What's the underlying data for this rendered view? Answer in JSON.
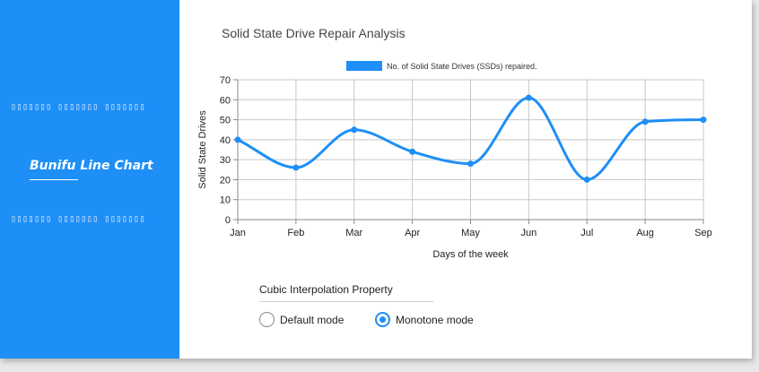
{
  "sidebar": {
    "title": "Bunifu Line Chart",
    "dots_top": "▯▯▯▯▯▯▯ ▯▯▯▯▯▯▯ ▯▯▯▯▯▯▯",
    "dots_bottom": "▯▯▯▯▯▯▯ ▯▯▯▯▯▯▯ ▯▯▯▯▯▯▯",
    "color": "#1e8ff6"
  },
  "interpolation": {
    "label": "Cubic Interpolation Property",
    "options": [
      "Default mode",
      "Monotone mode"
    ],
    "selected": "Monotone mode"
  },
  "chart_data": {
    "type": "line",
    "title": "Solid State Drive Repair Analysis",
    "categories": [
      "Jan",
      "Feb",
      "Mar",
      "Apr",
      "May",
      "Jun",
      "Jul",
      "Aug",
      "Sep"
    ],
    "series": [
      {
        "name": "No. of Solid State Drives (SSDs) repaired.",
        "values": [
          40,
          26,
          45,
          34,
          28,
          61,
          20,
          49,
          50
        ],
        "color": "#1e8ff6"
      }
    ],
    "xlabel": "Days of the week",
    "ylabel": "Solid State Drives",
    "ylim": [
      0,
      70
    ],
    "yticks": [
      0,
      10,
      20,
      30,
      40,
      50,
      60,
      70
    ],
    "grid": true,
    "legend": "top"
  }
}
